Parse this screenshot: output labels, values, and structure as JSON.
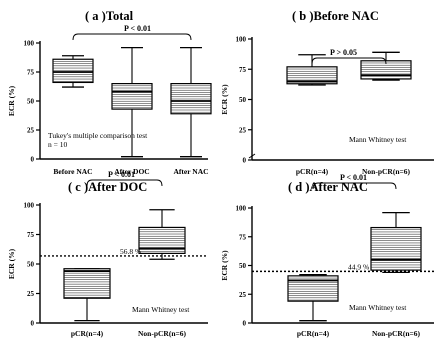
{
  "chart_data": [
    {
      "type": "box",
      "title": "( a )Total",
      "ylabel": "ECR (%)",
      "ylim": [
        0,
        100
      ],
      "yticks": [
        0,
        25,
        50,
        75,
        100
      ],
      "categories": [
        "Before NAC",
        "After DOC",
        "After NAC"
      ],
      "boxes": [
        {
          "min": 62,
          "q1": 66,
          "median": 75,
          "q3": 86,
          "max": 89
        },
        {
          "min": 2,
          "q1": 43,
          "median": 58,
          "q3": 65,
          "max": 96
        },
        {
          "min": 2,
          "q1": 39,
          "median": 50,
          "q3": 65,
          "max": 96
        }
      ],
      "annotation": {
        "text": "P < 0.01",
        "from": 0,
        "to": 2
      },
      "note": "Tukey's multiple comparison test\nn = 10",
      "threshold": null
    },
    {
      "type": "box",
      "title": "( b )Before NAC",
      "ylabel": "ECR (%)",
      "ylim": [
        0,
        100
      ],
      "yticks": [
        0,
        25,
        50,
        75,
        100
      ],
      "categories": [
        "pCR(n=4)",
        "Non-pCR(n=6)"
      ],
      "boxes": [
        {
          "min": 62,
          "q1": 63,
          "median": 65,
          "q3": 77,
          "max": 87
        },
        {
          "min": 66,
          "q1": 67,
          "median": 70,
          "q3": 82,
          "max": 89
        }
      ],
      "annotation": {
        "text": "P > 0.05",
        "from": 0,
        "to": 1
      },
      "note": "Mann Whitney test",
      "threshold": null
    },
    {
      "type": "box",
      "title": "( c )After DOC",
      "ylabel": "ECR (%)",
      "ylim": [
        0,
        100
      ],
      "yticks": [
        0,
        25,
        50,
        75,
        100
      ],
      "categories": [
        "pCR(n=4)",
        "Non-pCR(n=6)"
      ],
      "boxes": [
        {
          "min": 2,
          "q1": 21,
          "median": 44,
          "q3": 46,
          "max": 46
        },
        {
          "min": 54,
          "q1": 59,
          "median": 63,
          "q3": 81,
          "max": 96
        }
      ],
      "annotation": {
        "text": "P < 0.01",
        "from": 0,
        "to": 1
      },
      "note": "Mann Whitney test",
      "threshold": {
        "value": 56.8,
        "label": "56.8 %"
      }
    },
    {
      "type": "box",
      "title": "( d )After NAC",
      "ylabel": "ECR (%)",
      "ylim": [
        0,
        100
      ],
      "yticks": [
        0,
        25,
        50,
        75,
        100
      ],
      "categories": [
        "pCR(n=4)",
        "Non-pCR(n=6)"
      ],
      "boxes": [
        {
          "min": 2,
          "q1": 19,
          "median": 37,
          "q3": 41,
          "max": 42
        },
        {
          "min": 44,
          "q1": 46,
          "median": 55,
          "q3": 83,
          "max": 96
        }
      ],
      "annotation": {
        "text": "P < 0.01",
        "from": 0,
        "to": 1
      },
      "note": "Mann Whitney test",
      "threshold": {
        "value": 44.9,
        "label": "44.9 %"
      }
    }
  ]
}
